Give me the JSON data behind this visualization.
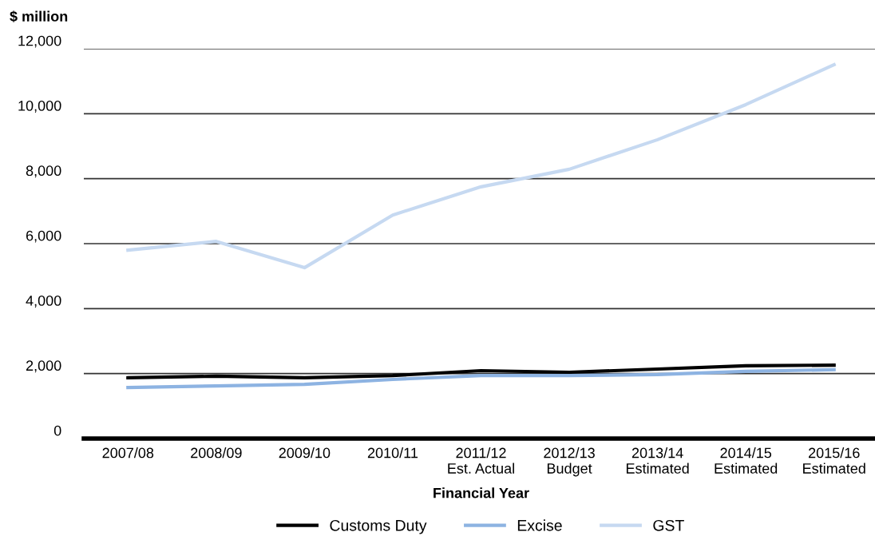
{
  "chart_data": {
    "type": "line",
    "ylabel": "$ million",
    "xlabel": "Financial Year",
    "categories": [
      "2007/08",
      "2008/09",
      "2009/10",
      "2010/11",
      "2011/12\nEst. Actual",
      "2012/13\nBudget",
      "2013/14\nEstimated",
      "2014/15\nEstimated",
      "2015/16\nEstimated"
    ],
    "series": [
      {
        "name": "Customs Duty",
        "color": "#000000",
        "values": [
          1870,
          1920,
          1870,
          1940,
          2090,
          2040,
          2140,
          2240,
          2260
        ]
      },
      {
        "name": "Excise",
        "color": "#8db3e2",
        "values": [
          1570,
          1620,
          1670,
          1820,
          1940,
          1940,
          1970,
          2070,
          2120
        ]
      },
      {
        "name": "GST",
        "color": "#c6d9f1",
        "values": [
          5800,
          6070,
          5260,
          6880,
          7750,
          8290,
          9200,
          10280,
          11510
        ]
      }
    ],
    "ylim": [
      0,
      12000
    ],
    "yticks": [
      {
        "value": 0,
        "label": "0"
      },
      {
        "value": 2000,
        "label": "2,000"
      },
      {
        "value": 4000,
        "label": "4,000"
      },
      {
        "value": 6000,
        "label": "6,000"
      },
      {
        "value": 8000,
        "label": "8,000"
      },
      {
        "value": 10000,
        "label": "10,000"
      },
      {
        "value": 12000,
        "label": "12,000"
      }
    ],
    "grid": "y",
    "legend": "bottom",
    "marker": "none",
    "line_style": "solid"
  }
}
